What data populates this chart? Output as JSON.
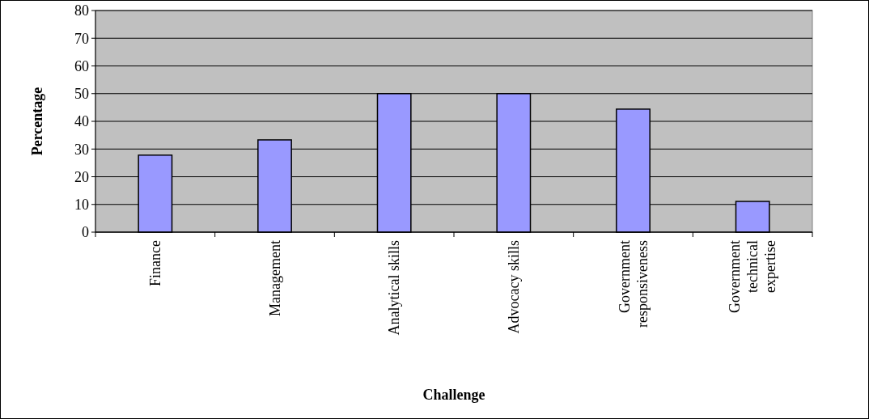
{
  "chart_data": {
    "type": "bar",
    "xlabel": "Challenge",
    "ylabel": "Percentage",
    "categories": [
      "Finance",
      "Management",
      "Analytical skills",
      "Advocacy skills",
      "Government responsiveness",
      "Government technical expertise"
    ],
    "values": [
      27.8,
      33.3,
      50,
      50,
      44.4,
      11.1
    ],
    "color": "#9999ff",
    "ylim": [
      0,
      80
    ],
    "yticks": [
      0,
      10,
      20,
      30,
      40,
      50,
      60,
      70,
      80
    ],
    "grid": "y"
  }
}
